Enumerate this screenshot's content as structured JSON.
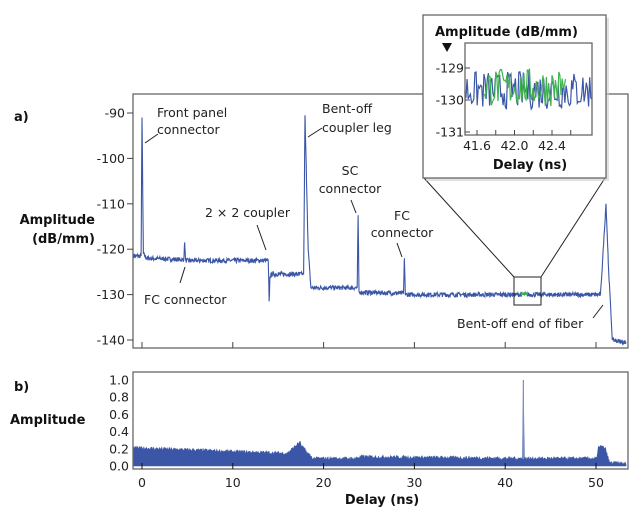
{
  "chart_data": [
    {
      "panel": "a)",
      "type": "line",
      "ylabel": [
        "Amplitude",
        "(dB/mm)"
      ],
      "xlim": [
        -1,
        53.5
      ],
      "ylim": [
        -141,
        -86
      ],
      "yticks": [
        -90,
        -100,
        -110,
        -120,
        -130,
        -140
      ],
      "xticks": [
        0,
        10,
        20,
        30,
        40,
        50
      ],
      "color": "#3b56a6",
      "series": [
        {
          "x": [
            -1,
            -0.1,
            0,
            0.15,
            0.5,
            4.6,
            4.7,
            4.8,
            13.9,
            14.0,
            14.1,
            14.3,
            17.8,
            17.95,
            18.3,
            18.6,
            23.7,
            23.8,
            23.9,
            28.8,
            28.9,
            29.0,
            50.5,
            51.1,
            51.4,
            51.8,
            53.3
          ],
          "y": [
            -121.5,
            -121.5,
            -91,
            -121,
            -122,
            -122.3,
            -118.5,
            -122.5,
            -122.5,
            -131.5,
            -126,
            -125.5,
            -125.5,
            -90.5,
            -120,
            -128.5,
            -128.5,
            -112.5,
            -129.5,
            -129.7,
            -122,
            -130,
            -130,
            -110,
            -125,
            -140,
            -140.5
          ]
        }
      ],
      "annotations": [
        {
          "text": [
            "Front panel",
            "connector"
          ],
          "x": 0,
          "y": -91
        },
        {
          "text": [
            "FC connector"
          ],
          "x": 4.7,
          "y": -122
        },
        {
          "text": [
            "2 × 2 coupler"
          ],
          "x": 14,
          "y": -122.5
        },
        {
          "text": [
            "Bent-off",
            "coupler leg"
          ],
          "x": 17.95,
          "y": -92
        },
        {
          "text": [
            "SC",
            "connector"
          ],
          "x": 23.8,
          "y": -113
        },
        {
          "text": [
            "FC",
            "connector"
          ],
          "x": 28.9,
          "y": -122.5
        },
        {
          "text": [
            "Bent-off end of fiber"
          ],
          "x": 50.5,
          "y": -130
        }
      ]
    },
    {
      "panel": "inset",
      "type": "line",
      "title": "Amplitude (dB/mm)",
      "xlabel": "Delay (ns)",
      "xlim": [
        41.47,
        42.83
      ],
      "ylim": [
        -131,
        -128.9
      ],
      "xticks": [
        41.6,
        42.0,
        42.4
      ],
      "yticks": [
        -129,
        -130,
        -131
      ],
      "series": [
        {
          "color": "#3b56a6",
          "x_range": [
            41.47,
            42.83
          ],
          "mean": -129.7,
          "spread": 0.6
        },
        {
          "color": "#3fb34f",
          "x_range": [
            41.68,
            42.55
          ],
          "mean": -129.6,
          "spread": 0.6
        }
      ]
    },
    {
      "panel": "b)",
      "type": "area",
      "ylabel": "Amplitude",
      "xlabel": "Delay (ns)",
      "xlim": [
        -1,
        53.5
      ],
      "ylim": [
        0,
        1.1
      ],
      "yticks": [
        0.0,
        0.2,
        0.4,
        0.6,
        0.8,
        1.0
      ],
      "xticks": [
        0,
        10,
        20,
        30,
        40,
        50
      ],
      "color": "#3b56a6",
      "series": [
        {
          "x": [
            -1,
            0,
            10,
            16,
            17.4,
            17.6,
            18.2,
            18.8,
            23.5,
            24,
            41.9,
            42.0,
            42.1,
            50.1,
            50.3,
            51.0,
            51.5,
            53.3
          ],
          "y": [
            0.2,
            0.2,
            0.16,
            0.14,
            0.27,
            0.22,
            0.15,
            0.08,
            0.08,
            0.1,
            0.08,
            1.0,
            0.08,
            0.08,
            0.23,
            0.2,
            0.03,
            0.02
          ]
        }
      ]
    }
  ]
}
